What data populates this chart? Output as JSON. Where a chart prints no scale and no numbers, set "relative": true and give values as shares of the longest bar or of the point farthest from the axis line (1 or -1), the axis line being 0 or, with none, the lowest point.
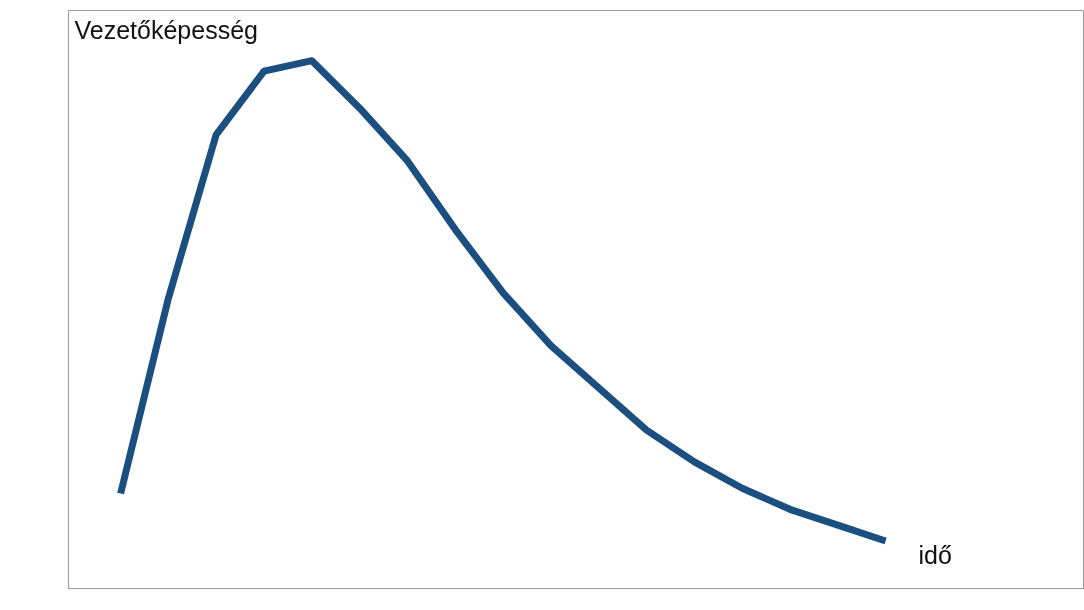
{
  "chart_data": {
    "type": "line",
    "relative": true,
    "ylabel": "Vezetőképesség",
    "xlabel": "idő",
    "categories": [
      null,
      null,
      null,
      null,
      null,
      null,
      null,
      null,
      null,
      null,
      null,
      null,
      null,
      null,
      null,
      null,
      null
    ],
    "series": [
      {
        "color": "#1b4f80",
        "values": [
          0.18,
          0.55,
          0.86,
          0.98,
          1,
          0.91,
          0.81,
          0.68,
          0.56,
          0.46,
          0.38,
          0.3,
          0.24,
          0.19,
          0.15,
          0.12,
          0.09
        ]
      }
    ],
    "marker": "none",
    "line_style": "solid"
  }
}
